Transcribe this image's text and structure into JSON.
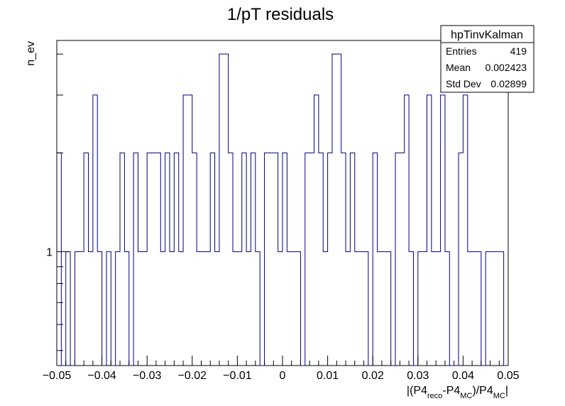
{
  "chart_data": {
    "type": "histogram",
    "title": "1/pT residuals",
    "xlabel": {
      "prefix": "|(P4",
      "sub1": "reco",
      "mid": "-P4",
      "sub2": "MC",
      "mid2": ")/P4",
      "sub3": "MC",
      "suffix": "|"
    },
    "ylabel": "n_ev",
    "log_y": true,
    "xlim": [
      -0.05,
      0.05
    ],
    "ylim": [
      0.45,
      4.4
    ],
    "x_ticks": [
      -0.05,
      -0.04,
      -0.03,
      -0.02,
      -0.01,
      0,
      0.01,
      0.02,
      0.03,
      0.04,
      0.05
    ],
    "x_tick_labels": [
      "−0.05",
      "−0.04",
      "−0.03",
      "−0.02",
      "−0.01",
      "0",
      "0.01",
      "0.02",
      "0.03",
      "0.04",
      "0.05"
    ],
    "y_tick_labels": [
      {
        "value": 1,
        "label": "1"
      }
    ],
    "line_color": "#000080",
    "bins": {
      "n": 100,
      "low": -0.05,
      "high": 0.05,
      "counts": [
        2,
        0,
        1,
        0,
        1,
        1,
        2,
        1,
        3,
        1,
        0,
        1,
        0,
        1,
        2,
        1,
        0,
        2,
        1,
        1,
        2,
        2,
        2,
        1,
        2,
        1,
        2,
        1,
        3,
        3,
        2,
        1,
        1,
        1,
        2,
        1,
        4,
        4,
        2,
        1,
        1,
        2,
        1,
        2,
        1,
        0,
        2,
        2,
        2,
        1,
        2,
        1,
        1,
        1,
        0,
        2,
        2,
        3,
        2,
        1,
        2,
        4,
        4,
        2,
        1,
        2,
        1,
        1,
        1,
        0,
        2,
        1,
        1,
        1,
        0,
        2,
        2,
        3,
        1,
        0,
        1,
        1,
        3,
        1,
        1,
        3,
        1,
        0,
        0,
        2,
        3,
        1,
        1,
        1,
        0,
        1,
        1,
        1,
        1,
        0
      ]
    }
  },
  "stats_box": {
    "name": "hpTinvKalman",
    "rows": [
      {
        "label": "Entries",
        "value": "419"
      },
      {
        "label": "Mean",
        "value": "0.002423"
      },
      {
        "label": "Std Dev",
        "value": "0.02899"
      }
    ]
  }
}
